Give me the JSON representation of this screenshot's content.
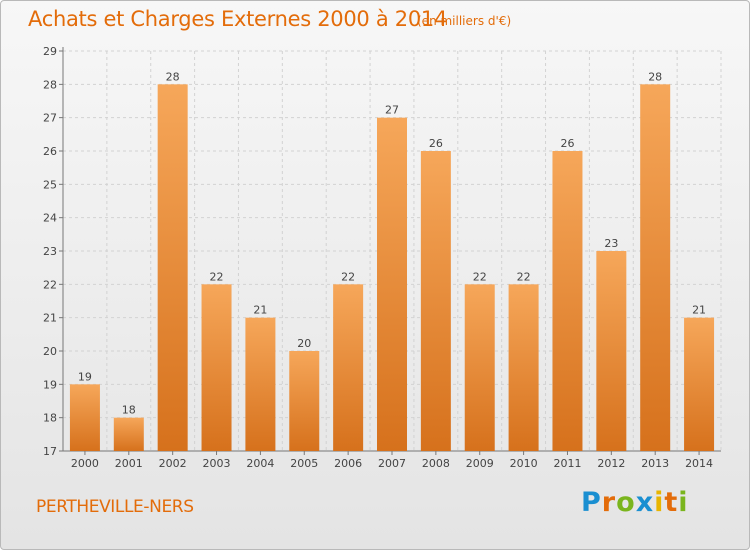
{
  "header": {
    "title": "Achats et Charges Externes 2000 à 2014",
    "unit": "(en milliers d'€)"
  },
  "footer": {
    "commune": "PERTHEVILLE-NERS",
    "logo_text": "Proxiti",
    "logo_colors": [
      "#1a8fd1",
      "#e36c0a",
      "#7ab51d",
      "#1a8fd1",
      "#e8b500",
      "#e36c0a",
      "#7ab51d"
    ]
  },
  "colors": {
    "bar_light": "#f6a75a",
    "bar_dark": "#d6711c",
    "accent": "#e36c0a"
  },
  "chart_data": {
    "type": "bar",
    "categories": [
      "2000",
      "2001",
      "2002",
      "2003",
      "2004",
      "2005",
      "2006",
      "2007",
      "2008",
      "2009",
      "2010",
      "2011",
      "2012",
      "2013",
      "2014"
    ],
    "values": [
      19,
      18,
      28,
      22,
      21,
      20,
      22,
      27,
      26,
      22,
      22,
      26,
      23,
      28,
      21
    ],
    "data_labels": [
      "19",
      "18",
      "28",
      "22",
      "21",
      "20",
      "22",
      "27",
      "26",
      "22",
      "22",
      "26",
      "23",
      "28",
      "21"
    ],
    "ylim": [
      17,
      29
    ],
    "yticks": [
      "17",
      "18",
      "19",
      "20",
      "21",
      "22",
      "23",
      "24",
      "25",
      "26",
      "27",
      "28",
      "29"
    ],
    "grid": true,
    "title": "Achats et Charges Externes 2000 à 2014",
    "xlabel": "",
    "ylabel": ""
  }
}
